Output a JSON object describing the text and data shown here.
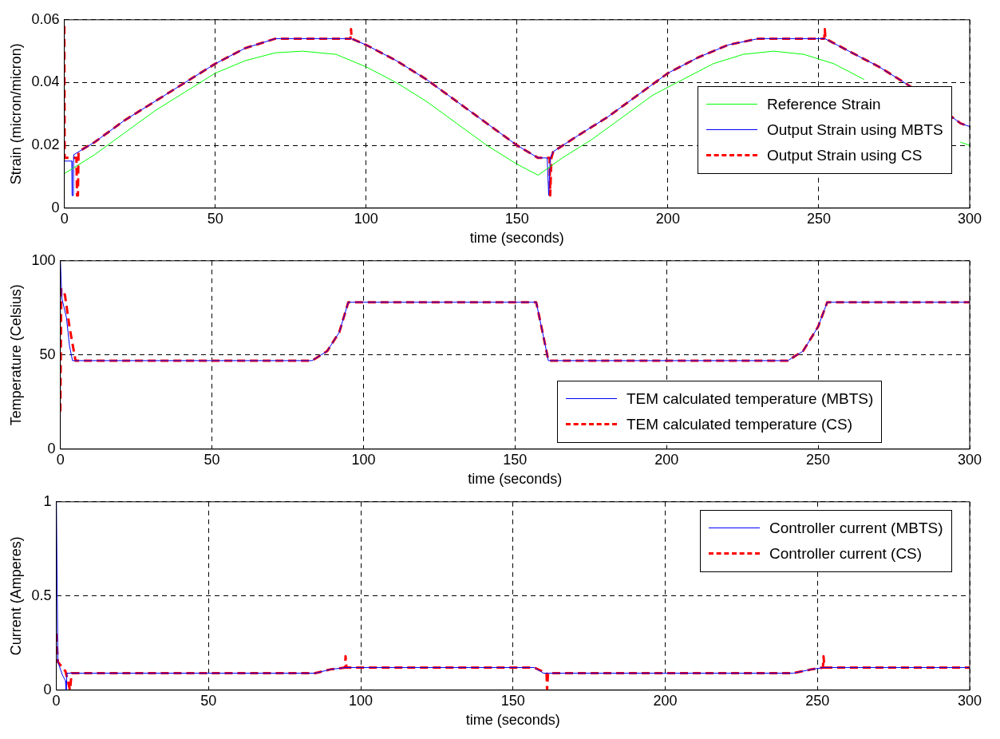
{
  "chart_data": [
    {
      "type": "line",
      "xlabel": "time (seconds)",
      "ylabel": "Strain (micron/micron)",
      "xlim": [
        0,
        300
      ],
      "xticks": [
        0,
        50,
        100,
        150,
        200,
        250,
        300
      ],
      "ylim": [
        0,
        0.06
      ],
      "yticks": [
        0,
        0.02,
        0.04,
        0.06
      ],
      "grid": true,
      "legend": "right",
      "series": [
        {
          "name": "Reference Strain",
          "color": "#00ff00",
          "line_style": "solid",
          "x": [
            0,
            10,
            20,
            30,
            40,
            50,
            60,
            70,
            79,
            90,
            100,
            110,
            120,
            130,
            140,
            150,
            157,
            165,
            175,
            185,
            195,
            205,
            215,
            225,
            235,
            245,
            255,
            265,
            275,
            285,
            297,
            300
          ],
          "values": [
            0.011,
            0.017,
            0.024,
            0.031,
            0.037,
            0.043,
            0.047,
            0.0495,
            0.05,
            0.049,
            0.045,
            0.04,
            0.034,
            0.027,
            0.02,
            0.014,
            0.0105,
            0.016,
            0.022,
            0.029,
            0.036,
            0.041,
            0.046,
            0.049,
            0.05,
            0.049,
            0.046,
            0.041,
            null,
            null,
            0.021,
            0.02
          ]
        },
        {
          "name": "Output Strain using MBTS",
          "color": "#0000ff",
          "line_style": "solid",
          "x": [
            0,
            2.5,
            2.6,
            3,
            3.1,
            10,
            20,
            30,
            40,
            50,
            60,
            70,
            95,
            100,
            110,
            120,
            130,
            140,
            150,
            157,
            160,
            160.5,
            161,
            162,
            170,
            180,
            190,
            200,
            210,
            220,
            230,
            252,
            260,
            270,
            280,
            297,
            300
          ],
          "values": [
            0.015,
            0.015,
            0.004,
            0.004,
            0.017,
            0.021,
            0.028,
            0.034,
            0.04,
            0.046,
            0.051,
            0.054,
            0.054,
            0.052,
            0.047,
            0.041,
            0.034,
            0.027,
            0.02,
            0.016,
            0.016,
            0.004,
            0.016,
            0.018,
            0.023,
            0.029,
            0.036,
            0.043,
            0.048,
            0.052,
            0.054,
            0.054,
            0.05,
            0.045,
            0.039,
            0.027,
            0.026
          ]
        },
        {
          "name": "Output Strain using CS",
          "color": "#ff0000",
          "line_style": "dashed",
          "x": [
            0,
            0.1,
            4,
            4.2,
            4.5,
            4.7,
            10,
            20,
            30,
            40,
            50,
            60,
            70,
            94.8,
            95,
            95.2,
            100,
            110,
            120,
            130,
            140,
            150,
            157,
            160.8,
            161,
            161.4,
            162,
            170,
            180,
            190,
            200,
            210,
            220,
            230,
            251.8,
            252,
            252.2,
            260,
            270,
            280,
            297,
            300
          ],
          "values": [
            0.058,
            0.016,
            0.016,
            0.004,
            0.004,
            0.018,
            0.021,
            0.028,
            0.034,
            0.04,
            0.046,
            0.051,
            0.054,
            0.054,
            0.057,
            0.054,
            0.052,
            0.047,
            0.041,
            0.034,
            0.027,
            0.02,
            0.016,
            0.016,
            0.004,
            0.016,
            0.018,
            0.023,
            0.029,
            0.036,
            0.043,
            0.048,
            0.052,
            0.054,
            0.054,
            0.057,
            0.054,
            0.05,
            0.045,
            0.039,
            0.027,
            0.026
          ]
        }
      ]
    },
    {
      "type": "line",
      "xlabel": "time (seconds)",
      "ylabel": "Temperature (Celsius)",
      "xlim": [
        0,
        300
      ],
      "xticks": [
        0,
        50,
        100,
        150,
        200,
        250,
        300
      ],
      "ylim": [
        0,
        100
      ],
      "yticks": [
        0,
        50,
        100
      ],
      "grid": true,
      "legend": "bottom right",
      "series": [
        {
          "name": "TEM calculated temperature (MBTS)",
          "color": "#0000ff",
          "line_style": "solid",
          "x": [
            0,
            0.5,
            2,
            3,
            4,
            83,
            88,
            92,
            95,
            157,
            160,
            161,
            240,
            245,
            250,
            253,
            300
          ],
          "values": [
            100,
            80,
            70,
            55,
            47,
            47,
            52,
            62,
            78,
            78,
            55,
            47,
            47,
            52,
            65,
            78,
            78
          ]
        },
        {
          "name": "TEM calculated temperature (CS)",
          "color": "#ff0000",
          "line_style": "dashed",
          "x": [
            0,
            0.3,
            1.5,
            3,
            5,
            83,
            88,
            92,
            95,
            157,
            160,
            161,
            240,
            245,
            250,
            253,
            300
          ],
          "values": [
            20,
            85,
            82,
            65,
            47,
            47,
            52,
            62,
            78,
            78,
            55,
            47,
            47,
            52,
            65,
            78,
            78
          ]
        }
      ]
    },
    {
      "type": "line",
      "xlabel": "time (seconds)",
      "ylabel": "Current (Amperes)",
      "xlim": [
        0,
        300
      ],
      "xticks": [
        0,
        50,
        100,
        150,
        200,
        250,
        300
      ],
      "ylim": [
        0,
        1
      ],
      "yticks": [
        0,
        0.5,
        1
      ],
      "grid": true,
      "legend": "top right",
      "series": [
        {
          "name": "Controller current (MBTS)",
          "color": "#0000ff",
          "line_style": "solid",
          "x": [
            0,
            0.5,
            2,
            3,
            3.2,
            3.5,
            85,
            90,
            95,
            157,
            160,
            242,
            248,
            252,
            300
          ],
          "values": [
            1,
            0.15,
            0.08,
            0.05,
            0,
            0.09,
            0.09,
            0.11,
            0.12,
            0.12,
            0.09,
            0.09,
            0.11,
            0.12,
            0.12
          ]
        },
        {
          "name": "Controller current (CS)",
          "color": "#ff0000",
          "line_style": "dashed",
          "x": [
            0,
            0.5,
            3,
            4.5,
            5,
            85,
            90,
            94.8,
            95,
            95.3,
            157,
            161,
            161.2,
            161.5,
            242,
            248,
            251.8,
            252,
            252.3,
            300
          ],
          "values": [
            0.3,
            0.15,
            0.1,
            0,
            0.09,
            0.09,
            0.11,
            0.12,
            0.18,
            0.12,
            0.12,
            0.09,
            0,
            0.09,
            0.09,
            0.11,
            0.12,
            0.18,
            0.12,
            0.12
          ]
        }
      ]
    }
  ]
}
